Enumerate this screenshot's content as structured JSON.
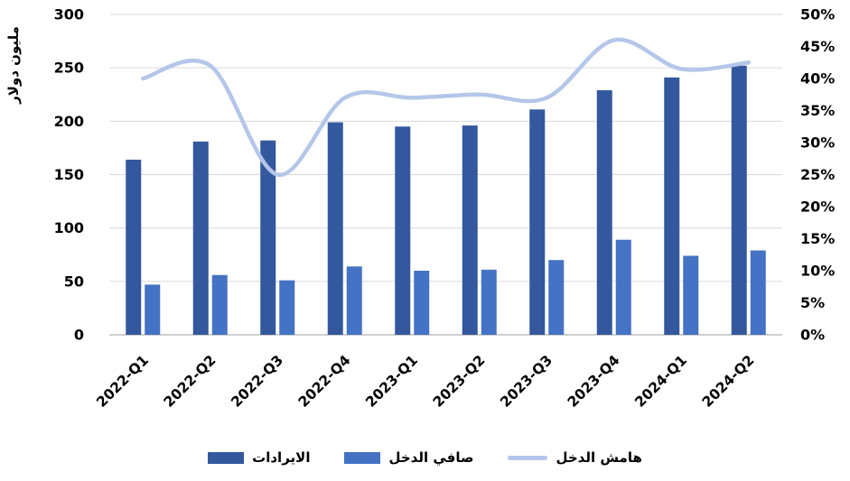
{
  "chart_data": {
    "type": "combo",
    "categories": [
      "2022-Q1",
      "2022-Q2",
      "2022-Q3",
      "2022-Q4",
      "2023-Q1",
      "2023-Q2",
      "2023-Q3",
      "2023-Q4",
      "2024-Q1",
      "2024-Q2"
    ],
    "series": [
      {
        "name": "الايرادات",
        "type": "bar",
        "axis": "left",
        "color": "#33589E",
        "values": [
          164,
          181,
          182,
          199,
          195,
          196,
          211,
          229,
          241,
          252
        ]
      },
      {
        "name": "صافي الدخل",
        "type": "bar",
        "axis": "left",
        "color": "#4472C4",
        "values": [
          47,
          56,
          51,
          64,
          60,
          61,
          70,
          89,
          74,
          79
        ]
      },
      {
        "name": "هامش الدخل",
        "type": "line",
        "axis": "right",
        "color": "#B4C6E9",
        "values": [
          40,
          42,
          25,
          37,
          37,
          37.5,
          37,
          46,
          41.5,
          42.5
        ]
      }
    ],
    "left_axis": {
      "label": "مليون دولار",
      "min": 0,
      "max": 300,
      "step": 50,
      "ticks": [
        "0",
        "50",
        "100",
        "150",
        "200",
        "250",
        "300"
      ]
    },
    "right_axis": {
      "min": 0,
      "max": 50,
      "step": 5,
      "ticks": [
        "0%",
        "5%",
        "10%",
        "15%",
        "20%",
        "25%",
        "30%",
        "35%",
        "40%",
        "45%",
        "50%"
      ]
    },
    "grid": true,
    "legend_position": "bottom",
    "colors": {
      "grid": "#D9D9D9",
      "axis_line": "#BFBFBF",
      "text": "#000000",
      "background": "#FFFFFF"
    }
  }
}
